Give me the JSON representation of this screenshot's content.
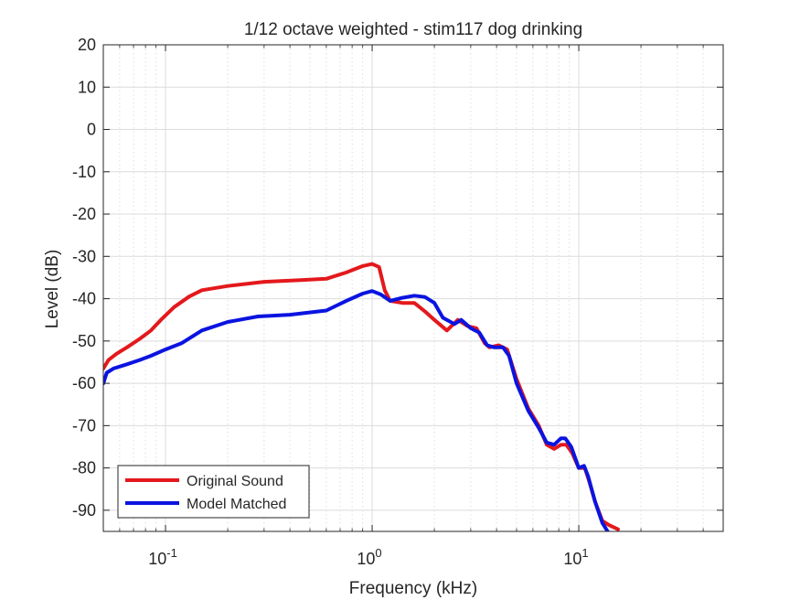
{
  "chart_data": {
    "type": "line",
    "title": "1/12 octave weighted - stim117 dog drinking",
    "xlabel": "Frequency (kHz)",
    "ylabel": "Level (dB)",
    "xscale": "log",
    "xlim": [
      0.05,
      50
    ],
    "ylim": [
      -95,
      20
    ],
    "xticks": [
      {
        "value": 0.1,
        "base": "10",
        "exp": "-1"
      },
      {
        "value": 1,
        "base": "10",
        "exp": "0"
      },
      {
        "value": 10,
        "base": "10",
        "exp": "1"
      }
    ],
    "yticks": [
      20,
      10,
      0,
      -10,
      -20,
      -30,
      -40,
      -50,
      -60,
      -70,
      -80,
      -90
    ],
    "grid": true,
    "minor_grid": true,
    "legend_position": "bottom-left",
    "series": [
      {
        "name": "Original Sound",
        "color": "#e3191c",
        "points": [
          [
            0.05,
            -56.5
          ],
          [
            0.053,
            -54.5
          ],
          [
            0.058,
            -53.0
          ],
          [
            0.065,
            -51.5
          ],
          [
            0.075,
            -49.5
          ],
          [
            0.085,
            -47.5
          ],
          [
            0.095,
            -45.0
          ],
          [
            0.11,
            -42.0
          ],
          [
            0.13,
            -39.5
          ],
          [
            0.15,
            -38.0
          ],
          [
            0.2,
            -37.0
          ],
          [
            0.3,
            -36.0
          ],
          [
            0.45,
            -35.6
          ],
          [
            0.6,
            -35.3
          ],
          [
            0.75,
            -33.8
          ],
          [
            0.9,
            -32.3
          ],
          [
            1.0,
            -31.8
          ],
          [
            1.08,
            -32.5
          ],
          [
            1.15,
            -38.0
          ],
          [
            1.22,
            -40.5
          ],
          [
            1.4,
            -41.0
          ],
          [
            1.6,
            -41.0
          ],
          [
            1.8,
            -43.0
          ],
          [
            2.0,
            -45.0
          ],
          [
            2.3,
            -47.5
          ],
          [
            2.6,
            -45.0
          ],
          [
            2.9,
            -46.5
          ],
          [
            3.2,
            -47.0
          ],
          [
            3.5,
            -50.5
          ],
          [
            3.7,
            -51.5
          ],
          [
            4.1,
            -51.0
          ],
          [
            4.5,
            -52.0
          ],
          [
            5.0,
            -59.0
          ],
          [
            5.7,
            -66.0
          ],
          [
            6.4,
            -70.0
          ],
          [
            7.0,
            -74.5
          ],
          [
            7.6,
            -75.5
          ],
          [
            8.2,
            -74.5
          ],
          [
            8.7,
            -74.5
          ],
          [
            9.3,
            -76.5
          ],
          [
            10.0,
            -80.0
          ],
          [
            10.7,
            -80.0
          ],
          [
            11.2,
            -83.0
          ],
          [
            12.0,
            -88.0
          ],
          [
            13.0,
            -92.5
          ],
          [
            14.0,
            -93.5
          ],
          [
            15.5,
            -94.5
          ]
        ]
      },
      {
        "name": "Model Matched",
        "color": "#0a14e0",
        "points": [
          [
            0.05,
            -60.0
          ],
          [
            0.052,
            -57.5
          ],
          [
            0.056,
            -56.5
          ],
          [
            0.065,
            -55.5
          ],
          [
            0.075,
            -54.5
          ],
          [
            0.085,
            -53.5
          ],
          [
            0.1,
            -52.0
          ],
          [
            0.12,
            -50.5
          ],
          [
            0.15,
            -47.5
          ],
          [
            0.2,
            -45.5
          ],
          [
            0.28,
            -44.2
          ],
          [
            0.4,
            -43.8
          ],
          [
            0.6,
            -42.8
          ],
          [
            0.75,
            -40.5
          ],
          [
            0.9,
            -38.8
          ],
          [
            1.0,
            -38.2
          ],
          [
            1.1,
            -39.0
          ],
          [
            1.22,
            -40.5
          ],
          [
            1.4,
            -39.8
          ],
          [
            1.6,
            -39.3
          ],
          [
            1.8,
            -39.6
          ],
          [
            2.0,
            -41.0
          ],
          [
            2.2,
            -44.5
          ],
          [
            2.5,
            -46.0
          ],
          [
            2.7,
            -45.0
          ],
          [
            3.0,
            -47.0
          ],
          [
            3.3,
            -48.0
          ],
          [
            3.6,
            -51.0
          ],
          [
            3.9,
            -51.5
          ],
          [
            4.3,
            -51.5
          ],
          [
            4.6,
            -53.5
          ],
          [
            5.0,
            -60.0
          ],
          [
            5.7,
            -66.5
          ],
          [
            6.4,
            -70.5
          ],
          [
            7.0,
            -74.0
          ],
          [
            7.6,
            -74.5
          ],
          [
            8.2,
            -73.0
          ],
          [
            8.6,
            -73.0
          ],
          [
            9.2,
            -75.0
          ],
          [
            10.0,
            -80.0
          ],
          [
            10.6,
            -79.5
          ],
          [
            11.1,
            -82.0
          ],
          [
            12.0,
            -88.0
          ],
          [
            13.0,
            -93.0
          ],
          [
            13.8,
            -95.0
          ]
        ]
      }
    ]
  }
}
